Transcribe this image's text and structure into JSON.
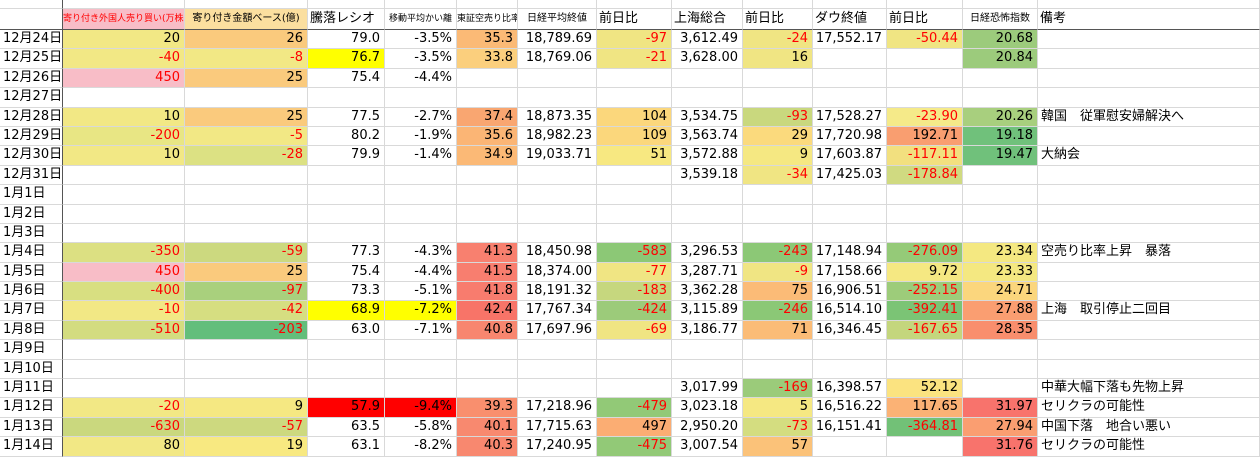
{
  "table": {
    "columns": [
      {
        "key": "date",
        "label": ""
      },
      {
        "key": "foreign-open-orders",
        "label": "寄り付き外国人売り買い(万株)",
        "bg": "#F8BDC7",
        "fg": "#FF0000"
      },
      {
        "key": "open-value-base",
        "label": "寄り付き金額ベース(億)",
        "bg": "#FBDF9F"
      },
      {
        "key": "advance-decline-ratio",
        "label": "騰落レシオ"
      },
      {
        "key": "ma-deviation",
        "label": "移動平均かい離"
      },
      {
        "key": "tse-short-sell-ratio",
        "label": "東証空売り比率"
      },
      {
        "key": "nikkei-close",
        "label": "日経平均終値"
      },
      {
        "key": "nikkei-change",
        "label": "前日比"
      },
      {
        "key": "shanghai-composite",
        "label": "上海総合"
      },
      {
        "key": "shanghai-change",
        "label": "前日比"
      },
      {
        "key": "dow-close",
        "label": "ダウ終値"
      },
      {
        "key": "dow-change",
        "label": "前日比"
      },
      {
        "key": "nikkei-vi",
        "label": "日経恐怖指数"
      },
      {
        "key": "remarks",
        "label": "備考"
      }
    ],
    "rows": [
      {
        "date": "12月24日",
        "cells": [
          {
            "t": "20",
            "bg": "#F2E885"
          },
          {
            "t": "26",
            "bg": "#FACA7D"
          },
          {
            "t": "79.0"
          },
          {
            "t": "-3.5%"
          },
          {
            "t": "35.3",
            "bg": "#FBBA76"
          },
          {
            "t": "18,789.69"
          },
          {
            "t": "-97",
            "bg": "#F0E583",
            "fg": "#FF0000"
          },
          {
            "t": "3,612.49"
          },
          {
            "t": "-24",
            "bg": "#F0E583",
            "fg": "#FF0000"
          },
          {
            "t": "17,552.17"
          },
          {
            "t": "-50.44",
            "bg": "#F0E583",
            "fg": "#FF0000"
          },
          {
            "t": "20.68",
            "bg": "#9CCB7C"
          },
          null
        ]
      },
      {
        "date": "12月25日",
        "cells": [
          {
            "t": "-40",
            "bg": "#F2E885",
            "fg": "#FF0000"
          },
          {
            "t": "-8",
            "bg": "#F2E885",
            "fg": "#FF0000"
          },
          {
            "t": "76.7",
            "bg": "#FFFF00"
          },
          {
            "t": "-3.5%"
          },
          {
            "t": "33.8",
            "bg": "#FBCF7D"
          },
          {
            "t": "18,769.06"
          },
          {
            "t": "-21",
            "bg": "#F0E583",
            "fg": "#FF0000"
          },
          {
            "t": "3,628.00"
          },
          {
            "t": "16",
            "bg": "#F0E583"
          },
          null,
          null,
          {
            "t": "20.84",
            "bg": "#9CCB7C"
          },
          null
        ]
      },
      {
        "date": "12月26日",
        "cells": [
          {
            "t": "450",
            "bg": "#F8BDC7",
            "fg": "#FF0000"
          },
          {
            "t": "25",
            "bg": "#FACA7D"
          },
          {
            "t": "75.4"
          },
          {
            "t": "-4.4%"
          },
          null,
          null,
          null,
          null,
          null,
          null,
          null,
          null,
          null
        ]
      },
      {
        "date": "12月27日",
        "cells": [
          null,
          null,
          null,
          null,
          null,
          null,
          null,
          null,
          null,
          null,
          null,
          null,
          null
        ]
      },
      {
        "date": "12月28日",
        "cells": [
          {
            "t": "10",
            "bg": "#F2E885"
          },
          {
            "t": "25",
            "bg": "#FACA7D"
          },
          {
            "t": "77.5"
          },
          {
            "t": "-2.7%"
          },
          {
            "t": "37.4",
            "bg": "#F9A671"
          },
          {
            "t": "18,873.35"
          },
          {
            "t": "104",
            "bg": "#FBD77C"
          },
          {
            "t": "3,534.75"
          },
          {
            "t": "-93",
            "bg": "#C9D87E",
            "fg": "#FF0000"
          },
          {
            "t": "17,528.27"
          },
          {
            "t": "-23.90",
            "bg": "#F5EA89",
            "fg": "#FF0000"
          },
          {
            "t": "20.26",
            "bg": "#A8CF7E"
          },
          {
            "t": "韓国　従軍慰安婦解決へ"
          }
        ]
      },
      {
        "date": "12月29日",
        "cells": [
          {
            "t": "-200",
            "bg": "#E8E684",
            "fg": "#FF0000"
          },
          {
            "t": "-5",
            "bg": "#F2E885",
            "fg": "#FF0000"
          },
          {
            "t": "80.2"
          },
          {
            "t": "-1.9%"
          },
          {
            "t": "35.6",
            "bg": "#FBB575"
          },
          {
            "t": "18,982.23"
          },
          {
            "t": "109",
            "bg": "#FBD77C"
          },
          {
            "t": "3,563.74"
          },
          {
            "t": "29",
            "bg": "#FBDA7D"
          },
          {
            "t": "17,720.98"
          },
          {
            "t": "192.71",
            "bg": "#F99E70"
          },
          {
            "t": "19.18",
            "bg": "#70C17B"
          },
          null
        ]
      },
      {
        "date": "12月30日",
        "cells": [
          {
            "t": "10",
            "bg": "#F2E885"
          },
          {
            "t": "-28",
            "bg": "#DCE183",
            "fg": "#FF0000"
          },
          {
            "t": "79.9"
          },
          {
            "t": "-1.4%"
          },
          {
            "t": "34.9",
            "bg": "#FBB976"
          },
          {
            "t": "19,033.71"
          },
          {
            "t": "51",
            "bg": "#F7E881"
          },
          {
            "t": "3,572.88"
          },
          {
            "t": "9",
            "bg": "#F5E882"
          },
          {
            "t": "17,603.87"
          },
          {
            "t": "-117.11",
            "bg": "#F2E07F",
            "fg": "#FF0000"
          },
          {
            "t": "19.47",
            "bg": "#70C17B"
          },
          {
            "t": "大納会"
          }
        ]
      },
      {
        "date": "12月31日",
        "cells": [
          null,
          null,
          null,
          null,
          null,
          null,
          null,
          {
            "t": "3,539.18"
          },
          {
            "t": "-34",
            "bg": "#F0E583",
            "fg": "#FF0000"
          },
          {
            "t": "17,425.03"
          },
          {
            "t": "-178.84",
            "bg": "#D0DA81",
            "fg": "#FF0000"
          },
          null,
          null
        ]
      },
      {
        "date": "1月1日",
        "cells": [
          null,
          null,
          null,
          null,
          null,
          null,
          null,
          null,
          null,
          null,
          null,
          null,
          null
        ]
      },
      {
        "date": "1月2日",
        "cells": [
          null,
          null,
          null,
          null,
          null,
          null,
          null,
          null,
          null,
          null,
          null,
          null,
          null
        ]
      },
      {
        "date": "1月3日",
        "cells": [
          null,
          null,
          null,
          null,
          null,
          null,
          null,
          null,
          null,
          null,
          null,
          null,
          null
        ]
      },
      {
        "date": "1月4日",
        "cells": [
          {
            "t": "-350",
            "bg": "#DCE082",
            "fg": "#FF0000"
          },
          {
            "t": "-59",
            "bg": "#CCD97F",
            "fg": "#FF0000"
          },
          {
            "t": "77.3"
          },
          {
            "t": "-4.3%"
          },
          {
            "t": "41.3",
            "bg": "#F8806F"
          },
          {
            "t": "18,450.98"
          },
          {
            "t": "-583",
            "bg": "#8CC876",
            "fg": "#FF0000"
          },
          {
            "t": "3,296.53"
          },
          {
            "t": "-243",
            "bg": "#8CC876",
            "fg": "#FF0000"
          },
          {
            "t": "17,148.94"
          },
          {
            "t": "-276.09",
            "bg": "#95CA78",
            "fg": "#FF0000"
          },
          {
            "t": "23.34",
            "bg": "#F4E881"
          },
          {
            "t": "空売り比率上昇　暴落"
          }
        ]
      },
      {
        "date": "1月5日",
        "cells": [
          {
            "t": "450",
            "bg": "#F8BDC7",
            "fg": "#FF0000"
          },
          {
            "t": "25",
            "bg": "#FACA7D"
          },
          {
            "t": "75.4"
          },
          {
            "t": "-4.4%"
          },
          {
            "t": "41.5",
            "bg": "#F87E6F"
          },
          {
            "t": "18,374.00"
          },
          {
            "t": "-77",
            "bg": "#F0E583",
            "fg": "#FF0000"
          },
          {
            "t": "3,287.71"
          },
          {
            "t": "-9",
            "bg": "#F0E583",
            "fg": "#FF0000"
          },
          {
            "t": "17,158.66"
          },
          {
            "t": "9.72",
            "bg": "#F5E882"
          },
          {
            "t": "23.33",
            "bg": "#F4E881"
          },
          null
        ]
      },
      {
        "date": "1月6日",
        "cells": [
          {
            "t": "-400",
            "bg": "#D8DF81",
            "fg": "#FF0000"
          },
          {
            "t": "-97",
            "bg": "#A9D07D",
            "fg": "#FF0000"
          },
          {
            "t": "73.3"
          },
          {
            "t": "-5.1%"
          },
          {
            "t": "41.8",
            "bg": "#F87C6E"
          },
          {
            "t": "18,191.32"
          },
          {
            "t": "-183",
            "bg": "#C6D77E",
            "fg": "#FF0000"
          },
          {
            "t": "3,362.28"
          },
          {
            "t": "75",
            "bg": "#FBBB77"
          },
          {
            "t": "16,906.51"
          },
          {
            "t": "-252.15",
            "bg": "#9DCC7A",
            "fg": "#FF0000"
          },
          {
            "t": "24.71",
            "bg": "#FBD67D"
          },
          null
        ]
      },
      {
        "date": "1月7日",
        "cells": [
          {
            "t": "-10",
            "bg": "#F2E885",
            "fg": "#FF0000"
          },
          {
            "t": "-42",
            "bg": "#D6DE81",
            "fg": "#FF0000"
          },
          {
            "t": "68.9",
            "bg": "#FFFF00"
          },
          {
            "t": "-7.2%",
            "bg": "#FFFF00"
          },
          {
            "t": "42.4",
            "bg": "#F87468"
          },
          {
            "t": "17,767.34"
          },
          {
            "t": "-424",
            "bg": "#9CCB7A",
            "fg": "#FF0000"
          },
          {
            "t": "3,115.89"
          },
          {
            "t": "-246",
            "bg": "#8BC876",
            "fg": "#FF0000"
          },
          {
            "t": "16,514.10"
          },
          {
            "t": "-392.41",
            "bg": "#7BC475",
            "fg": "#FF0000"
          },
          {
            "t": "27.88",
            "bg": "#FA9E71"
          },
          {
            "t": "上海　取引停止二回目"
          }
        ]
      },
      {
        "date": "1月8日",
        "cells": [
          {
            "t": "-510",
            "bg": "#D3DC80",
            "fg": "#FF0000"
          },
          {
            "t": "-203",
            "bg": "#63BE7B",
            "fg": "#FF0000"
          },
          {
            "t": "63.0"
          },
          {
            "t": "-7.1%"
          },
          {
            "t": "40.8",
            "bg": "#F8866F"
          },
          {
            "t": "17,697.96"
          },
          {
            "t": "-69",
            "bg": "#F0E583",
            "fg": "#FF0000"
          },
          {
            "t": "3,186.77"
          },
          {
            "t": "71",
            "bg": "#FBBC77"
          },
          {
            "t": "16,346.45"
          },
          {
            "t": "-167.65",
            "bg": "#C4D67D",
            "fg": "#FF0000"
          },
          {
            "t": "28.35",
            "bg": "#F98E6D"
          },
          null
        ]
      },
      {
        "date": "1月9日",
        "cells": [
          null,
          null,
          null,
          null,
          null,
          null,
          null,
          null,
          null,
          null,
          null,
          null,
          null
        ]
      },
      {
        "date": "1月10日",
        "cells": [
          null,
          null,
          null,
          null,
          null,
          null,
          null,
          null,
          null,
          null,
          null,
          null,
          null
        ]
      },
      {
        "date": "1月11日",
        "cells": [
          null,
          null,
          null,
          null,
          null,
          null,
          null,
          {
            "t": "3,017.99"
          },
          {
            "t": "-169",
            "bg": "#9BCB7A",
            "fg": "#FF0000"
          },
          {
            "t": "16,398.57"
          },
          {
            "t": "52.12",
            "bg": "#FBE380"
          },
          null,
          {
            "t": "中華大幅下落も先物上昇"
          }
        ]
      },
      {
        "date": "1月12日",
        "cells": [
          {
            "t": "-20",
            "bg": "#F2E885",
            "fg": "#FF0000"
          },
          {
            "t": "9",
            "bg": "#F5E882"
          },
          {
            "t": "57.9",
            "bg": "#FF0000"
          },
          {
            "t": "-9.4%",
            "bg": "#FF0000"
          },
          {
            "t": "39.3",
            "bg": "#F98F6E"
          },
          {
            "t": "17,218.96"
          },
          {
            "t": "-479",
            "bg": "#92C977",
            "fg": "#FF0000"
          },
          {
            "t": "3,023.18"
          },
          {
            "t": "5",
            "bg": "#F5E882"
          },
          {
            "t": "16,516.22"
          },
          {
            "t": "117.65",
            "bg": "#FBB275"
          },
          {
            "t": "31.97",
            "bg": "#F8736C"
          },
          {
            "t": "セリクラの可能性"
          }
        ]
      },
      {
        "date": "1月13日",
        "cells": [
          {
            "t": "-630",
            "bg": "#CAD87E",
            "fg": "#FF0000"
          },
          {
            "t": "-57",
            "bg": "#CDD97F",
            "fg": "#FF0000"
          },
          {
            "t": "63.5"
          },
          {
            "t": "-5.8%"
          },
          {
            "t": "40.1",
            "bg": "#F8896F"
          },
          {
            "t": "17,715.63"
          },
          {
            "t": "497",
            "bg": "#FBAD73"
          },
          {
            "t": "2,950.20"
          },
          {
            "t": "-73",
            "bg": "#D4DD80",
            "fg": "#FF0000"
          },
          {
            "t": "16,151.41"
          },
          {
            "t": "-364.81",
            "bg": "#72C177",
            "fg": "#FF0000"
          },
          {
            "t": "27.94",
            "bg": "#FA9E71"
          },
          {
            "t": "中国下落　地合い悪い"
          }
        ]
      },
      {
        "date": "1月14日",
        "cells": [
          {
            "t": "80",
            "bg": "#F2E885"
          },
          {
            "t": "19",
            "bg": "#F8E981"
          },
          {
            "t": "63.1"
          },
          {
            "t": "-8.2%"
          },
          {
            "t": "40.3",
            "bg": "#F8886F"
          },
          {
            "t": "17,240.95"
          },
          {
            "t": "-475",
            "bg": "#92C977",
            "fg": "#FF0000"
          },
          {
            "t": "3,007.54"
          },
          {
            "t": "57",
            "bg": "#FBC279"
          },
          null,
          null,
          {
            "t": "31.76",
            "bg": "#F8736C"
          },
          {
            "t": "セリクラの可能性"
          }
        ]
      }
    ]
  }
}
